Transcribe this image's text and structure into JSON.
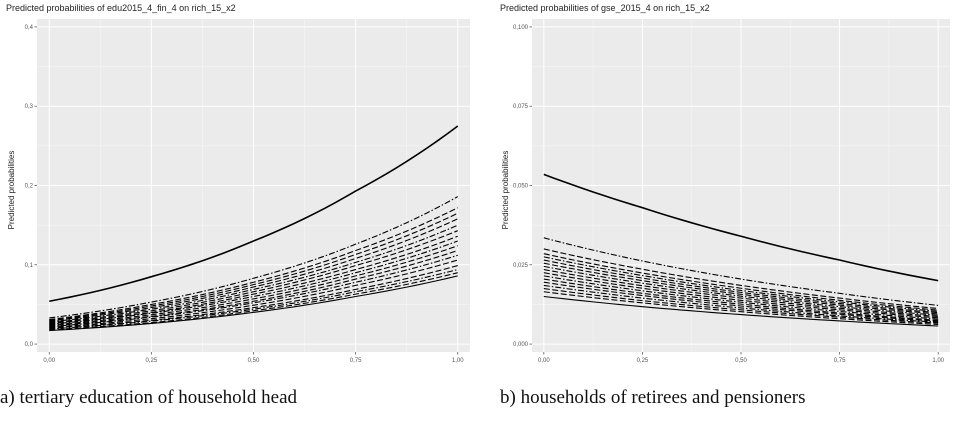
{
  "captions": {
    "a": "a) tertiary education of household head",
    "b": "b) households of retirees and pensioners"
  },
  "chart_data": [
    {
      "type": "line",
      "title": "Predicted probabilities of edu2015_4_fin_4 on rich_15_x2",
      "xlabel": "",
      "ylabel": "Predicted probabilities",
      "xlim": [
        -0.03,
        1.03
      ],
      "ylim": [
        -0.01,
        0.41
      ],
      "x_ticks": [
        0,
        0.25,
        0.5,
        0.75,
        1
      ],
      "x_tick_labels": [
        "0,00",
        "0,25",
        "0,50",
        "0,75",
        "1,00"
      ],
      "y_ticks": [
        0,
        0.1,
        0.2,
        0.3,
        0.4
      ],
      "y_tick_labels": [
        "0,0",
        "0,1",
        "0,2",
        "0,3",
        "0,4"
      ],
      "grid": true,
      "background": "#ebebeb",
      "line_color": "#000000",
      "x": [
        0,
        0.25,
        0.5,
        0.75,
        1
      ],
      "series": [
        {
          "values": [
            0.054,
            0.085,
            0.13,
            0.193,
            0.275
          ],
          "style": "solid"
        },
        {
          "values": [
            0.033,
            0.053,
            0.083,
            0.126,
            0.186
          ],
          "style": "dashdot"
        },
        {
          "values": [
            0.031,
            0.05,
            0.078,
            0.118,
            0.172
          ],
          "style": "dashed"
        },
        {
          "values": [
            0.03,
            0.048,
            0.075,
            0.113,
            0.165
          ],
          "style": "dashed"
        },
        {
          "values": [
            0.029,
            0.046,
            0.072,
            0.108,
            0.158
          ],
          "style": "dashed"
        },
        {
          "values": [
            0.028,
            0.044,
            0.069,
            0.103,
            0.15
          ],
          "style": "dashdot"
        },
        {
          "values": [
            0.027,
            0.042,
            0.066,
            0.099,
            0.143
          ],
          "style": "dashed"
        },
        {
          "values": [
            0.026,
            0.04,
            0.063,
            0.094,
            0.136
          ],
          "style": "dashed"
        },
        {
          "values": [
            0.025,
            0.039,
            0.06,
            0.09,
            0.13
          ],
          "style": "dashdot"
        },
        {
          "values": [
            0.024,
            0.037,
            0.057,
            0.086,
            0.124
          ],
          "style": "dashed"
        },
        {
          "values": [
            0.023,
            0.035,
            0.054,
            0.082,
            0.118
          ],
          "style": "dashed"
        },
        {
          "values": [
            0.022,
            0.034,
            0.052,
            0.078,
            0.112
          ],
          "style": "dashdot"
        },
        {
          "values": [
            0.021,
            0.032,
            0.049,
            0.074,
            0.106
          ],
          "style": "dashed"
        },
        {
          "values": [
            0.02,
            0.03,
            0.046,
            0.069,
            0.099
          ],
          "style": "dashed"
        },
        {
          "values": [
            0.019,
            0.029,
            0.044,
            0.066,
            0.094
          ],
          "style": "dashdot"
        },
        {
          "values": [
            0.018,
            0.027,
            0.042,
            0.063,
            0.09
          ],
          "style": "dashed"
        },
        {
          "values": [
            0.017,
            0.026,
            0.04,
            0.06,
            0.086
          ],
          "style": "solid"
        }
      ]
    },
    {
      "type": "line",
      "title": "Predicted probabilities of gse_2015_4 on rich_15_x2",
      "xlabel": "",
      "ylabel": "Predicted probabilities",
      "xlim": [
        -0.03,
        1.03
      ],
      "ylim": [
        -0.0025,
        0.1025
      ],
      "x_ticks": [
        0,
        0.25,
        0.5,
        0.75,
        1
      ],
      "x_tick_labels": [
        "0,00",
        "0,25",
        "0,50",
        "0,75",
        "1,00"
      ],
      "y_ticks": [
        0,
        0.025,
        0.05,
        0.075,
        0.1
      ],
      "y_tick_labels": [
        "0,000",
        "0,025",
        "0,050",
        "0,075",
        "0,100"
      ],
      "grid": true,
      "background": "#ebebeb",
      "line_color": "#000000",
      "x": [
        0,
        0.25,
        0.5,
        0.75,
        1
      ],
      "series": [
        {
          "values": [
            0.0535,
            0.043,
            0.034,
            0.0265,
            0.02
          ],
          "style": "solid"
        },
        {
          "values": [
            0.0335,
            0.0262,
            0.0205,
            0.016,
            0.0122
          ],
          "style": "dashdot"
        },
        {
          "values": [
            0.03,
            0.0236,
            0.0185,
            0.0145,
            0.0112
          ],
          "style": "dashed"
        },
        {
          "values": [
            0.0285,
            0.0224,
            0.0176,
            0.0138,
            0.0107
          ],
          "style": "dashed"
        },
        {
          "values": [
            0.0275,
            0.0216,
            0.0169,
            0.0133,
            0.0103
          ],
          "style": "dashdot"
        },
        {
          "values": [
            0.0265,
            0.0208,
            0.0163,
            0.0128,
            0.0099
          ],
          "style": "dashed"
        },
        {
          "values": [
            0.0255,
            0.02,
            0.0157,
            0.0123,
            0.0095
          ],
          "style": "dashed"
        },
        {
          "values": [
            0.0245,
            0.0192,
            0.0151,
            0.0118,
            0.0091
          ],
          "style": "dashdot"
        },
        {
          "values": [
            0.0235,
            0.0184,
            0.0145,
            0.0113,
            0.0087
          ],
          "style": "dashed"
        },
        {
          "values": [
            0.0225,
            0.0176,
            0.0138,
            0.0108,
            0.0083
          ],
          "style": "dashed"
        },
        {
          "values": [
            0.0215,
            0.0168,
            0.0132,
            0.0103,
            0.0079
          ],
          "style": "dashdot"
        },
        {
          "values": [
            0.0205,
            0.016,
            0.0126,
            0.0098,
            0.0075
          ],
          "style": "dashed"
        },
        {
          "values": [
            0.0195,
            0.0153,
            0.012,
            0.0094,
            0.0072
          ],
          "style": "dashed"
        },
        {
          "values": [
            0.0185,
            0.0145,
            0.0114,
            0.0089,
            0.0069
          ],
          "style": "dashdot"
        },
        {
          "values": [
            0.0175,
            0.0137,
            0.0108,
            0.0085,
            0.0066
          ],
          "style": "dashed"
        },
        {
          "values": [
            0.0165,
            0.013,
            0.0102,
            0.008,
            0.0062
          ],
          "style": "dashed"
        },
        {
          "values": [
            0.015,
            0.0118,
            0.0093,
            0.0073,
            0.0057
          ],
          "style": "solid"
        }
      ]
    }
  ]
}
